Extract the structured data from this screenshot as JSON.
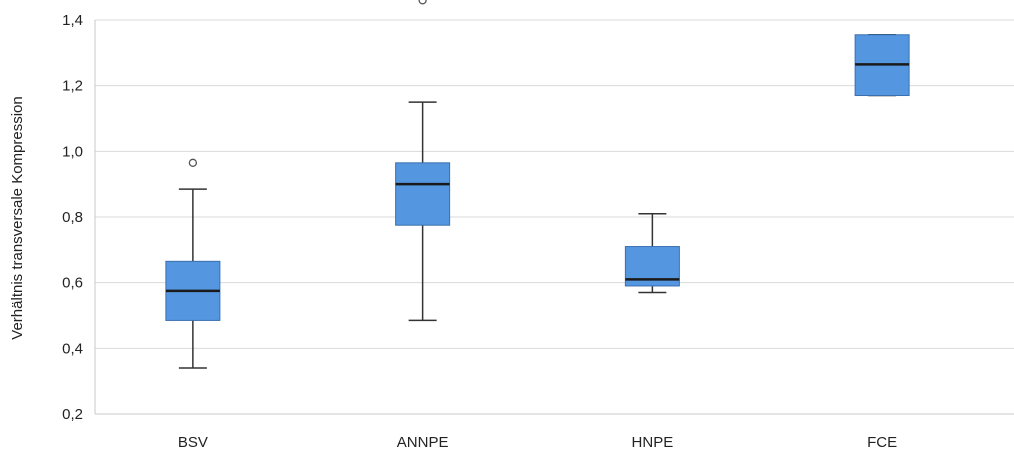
{
  "chart_data": {
    "type": "boxplot",
    "title": "",
    "xlabel": "",
    "ylabel": "Verhältnis transversale Kompression",
    "ylim": [
      0.2,
      1.4
    ],
    "yticks": [
      {
        "value": 0.2,
        "label": "0,2"
      },
      {
        "value": 0.4,
        "label": "0,4"
      },
      {
        "value": 0.6,
        "label": "0,6"
      },
      {
        "value": 0.8,
        "label": "0,8"
      },
      {
        "value": 1.0,
        "label": "1,0"
      },
      {
        "value": 1.2,
        "label": "1,2"
      },
      {
        "value": 1.4,
        "label": "1,4"
      }
    ],
    "grid": true,
    "box_color": "#5596e0",
    "median_color": "#1a1a1a",
    "categories": [
      "BSV",
      "ANNPE",
      "HNPE",
      "FCE"
    ],
    "boxes": [
      {
        "category": "BSV",
        "whisker_low": 0.34,
        "q1": 0.485,
        "median": 0.575,
        "q3": 0.665,
        "whisker_high": 0.885,
        "outliers": [
          0.965
        ]
      },
      {
        "category": "ANNPE",
        "whisker_low": 0.485,
        "q1": 0.775,
        "median": 0.9,
        "q3": 0.965,
        "whisker_high": 1.15,
        "outliers": [
          1.46
        ]
      },
      {
        "category": "HNPE",
        "whisker_low": 0.57,
        "q1": 0.59,
        "median": 0.61,
        "q3": 0.71,
        "whisker_high": 0.81,
        "outliers": []
      },
      {
        "category": "FCE",
        "whisker_low": 1.17,
        "q1": 1.17,
        "median": 1.265,
        "q3": 1.355,
        "whisker_high": 1.355,
        "outliers": []
      }
    ]
  }
}
